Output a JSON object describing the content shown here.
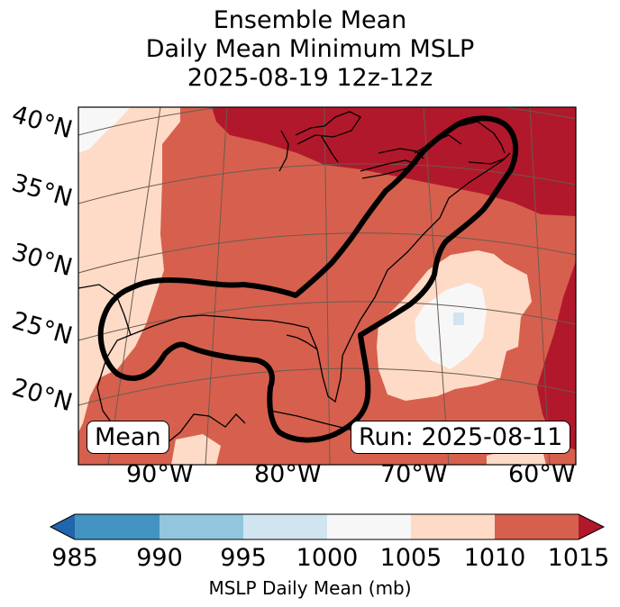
{
  "title": {
    "line1": "Ensemble Mean",
    "line2": "Daily Mean Minimum MSLP",
    "line3": "2025-08-19 12z-12z"
  },
  "map": {
    "lat_labels": [
      "40°N",
      "35°N",
      "30°N",
      "25°N",
      "20°N"
    ],
    "lon_labels": [
      "90°W",
      "80°W",
      "70°W",
      "60°W"
    ],
    "box_left": "Mean",
    "box_right": "Run: 2025-08-11"
  },
  "colorbar": {
    "ticks": [
      "985",
      "990",
      "995",
      "1000",
      "1005",
      "1010",
      "1015"
    ],
    "label": "MSLP Daily Mean (mb)",
    "colors": [
      "#2166ac",
      "#4393c3",
      "#92c5de",
      "#d1e5f0",
      "#f7f7f7",
      "#fddbc7",
      "#d6604d",
      "#b2182b"
    ]
  },
  "colors": {
    "c1015": "#b2182b",
    "c1010": "#d6604d",
    "c1005": "#fddbc7",
    "c1000": "#f7f7f7",
    "c995": "#d1e5f0",
    "contour": "#000000",
    "coast": "#000000",
    "grid": "#6b5a50"
  }
}
